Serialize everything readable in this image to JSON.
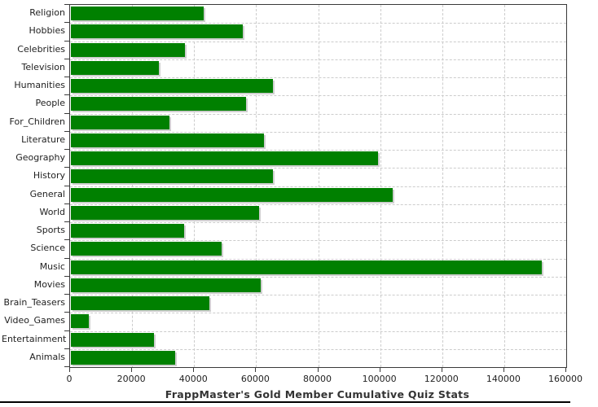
{
  "chart_data": {
    "type": "bar",
    "orientation": "horizontal",
    "title": "FrappMaster's Gold Member Cumulative Quiz Stats",
    "xlabel": "",
    "ylabel": "",
    "xlim": [
      0,
      160000
    ],
    "x_ticks": [
      0,
      20000,
      40000,
      60000,
      80000,
      100000,
      120000,
      140000,
      160000
    ],
    "grid": "dashed",
    "legend": "none",
    "categories": [
      "Religion",
      "Hobbies",
      "Celebrities",
      "Television",
      "Humanities",
      "People",
      "For_Children",
      "Literature",
      "Geography",
      "History",
      "General",
      "World",
      "Sports",
      "Science",
      "Music",
      "Movies",
      "Brain_Teasers",
      "Video_Games",
      "Entertainment",
      "Animals"
    ],
    "values": [
      42800,
      55400,
      36800,
      28400,
      65200,
      56500,
      31800,
      62300,
      99100,
      65200,
      103800,
      60700,
      36500,
      48600,
      151800,
      61200,
      44700,
      5800,
      26800,
      33600
    ]
  },
  "colors": {
    "bar": "#008000",
    "bar_shadow": "#cfcfcf",
    "grid": "#cccccc",
    "axis": "#3a3a3a",
    "text": "#222222",
    "title": "#333333",
    "background": "#ffffff"
  }
}
